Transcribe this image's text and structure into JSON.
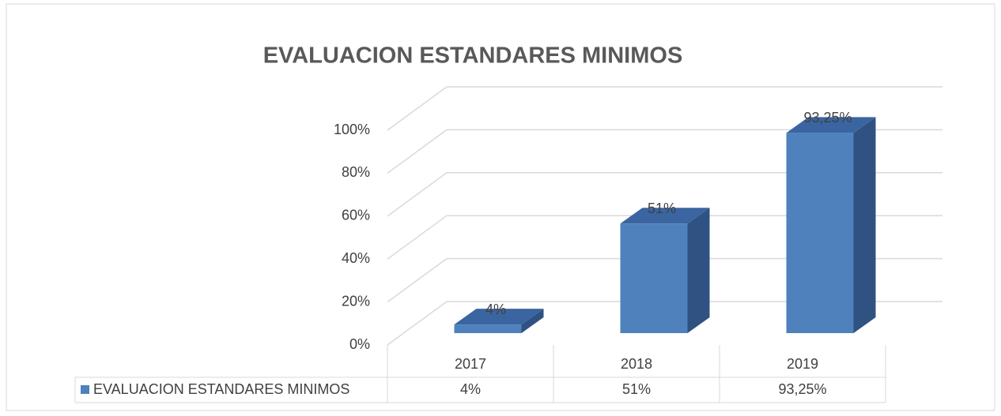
{
  "chart_data": {
    "type": "bar3d",
    "title": "EVALUACION ESTANDARES MINIMOS",
    "categories": [
      "2017",
      "2018",
      "2019"
    ],
    "series": [
      {
        "name": "EVALUACION ESTANDARES MINIMOS",
        "color": "#4f81bd",
        "values": [
          4,
          51,
          93.25
        ],
        "value_labels": [
          "4%",
          "51%",
          "93,25%"
        ]
      }
    ],
    "ylim": [
      0,
      100
    ],
    "yticks": [
      {
        "value": 0,
        "label": "0%"
      },
      {
        "value": 20,
        "label": "20%"
      },
      {
        "value": 40,
        "label": "40%"
      },
      {
        "value": 60,
        "label": "60%"
      },
      {
        "value": 80,
        "label": "80%"
      },
      {
        "value": 100,
        "label": "100%"
      }
    ],
    "grid": true,
    "legend": "table"
  }
}
